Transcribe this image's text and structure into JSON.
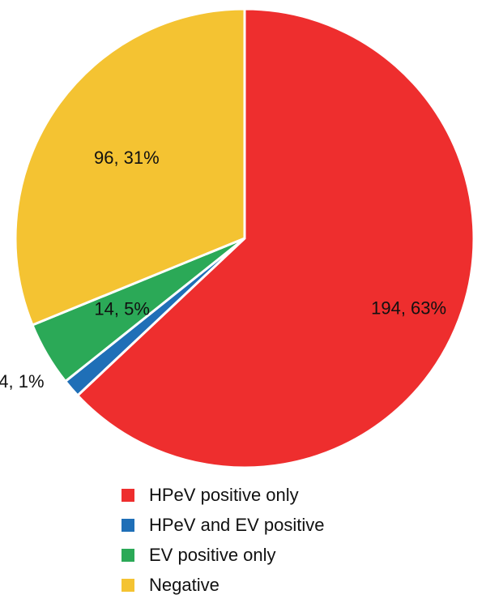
{
  "chart_data": {
    "type": "pie",
    "categories": [
      "HPeV positive only",
      "HPeV and EV positive",
      "EV positive only",
      "Negative"
    ],
    "values": [
      194,
      4,
      14,
      96
    ],
    "percentages": [
      63,
      1,
      5,
      31
    ],
    "data_labels": [
      "194, 63%",
      "4, 1%",
      "14, 5%",
      "96, 31%"
    ],
    "colors": [
      "#ee2e2e",
      "#1f6fb7",
      "#2ba957",
      "#f4c332"
    ],
    "start": "12 o'clock",
    "direction": "clockwise",
    "legend_position": "bottom",
    "title": "",
    "xlabel": "",
    "ylabel": ""
  },
  "legend": {
    "items": [
      {
        "label": "HPeV positive only",
        "color": "#ee2e2e"
      },
      {
        "label": "HPeV and EV positive",
        "color": "#1f6fb7"
      },
      {
        "label": "EV positive only",
        "color": "#2ba957"
      },
      {
        "label": "Negative",
        "color": "#f4c332"
      }
    ]
  }
}
